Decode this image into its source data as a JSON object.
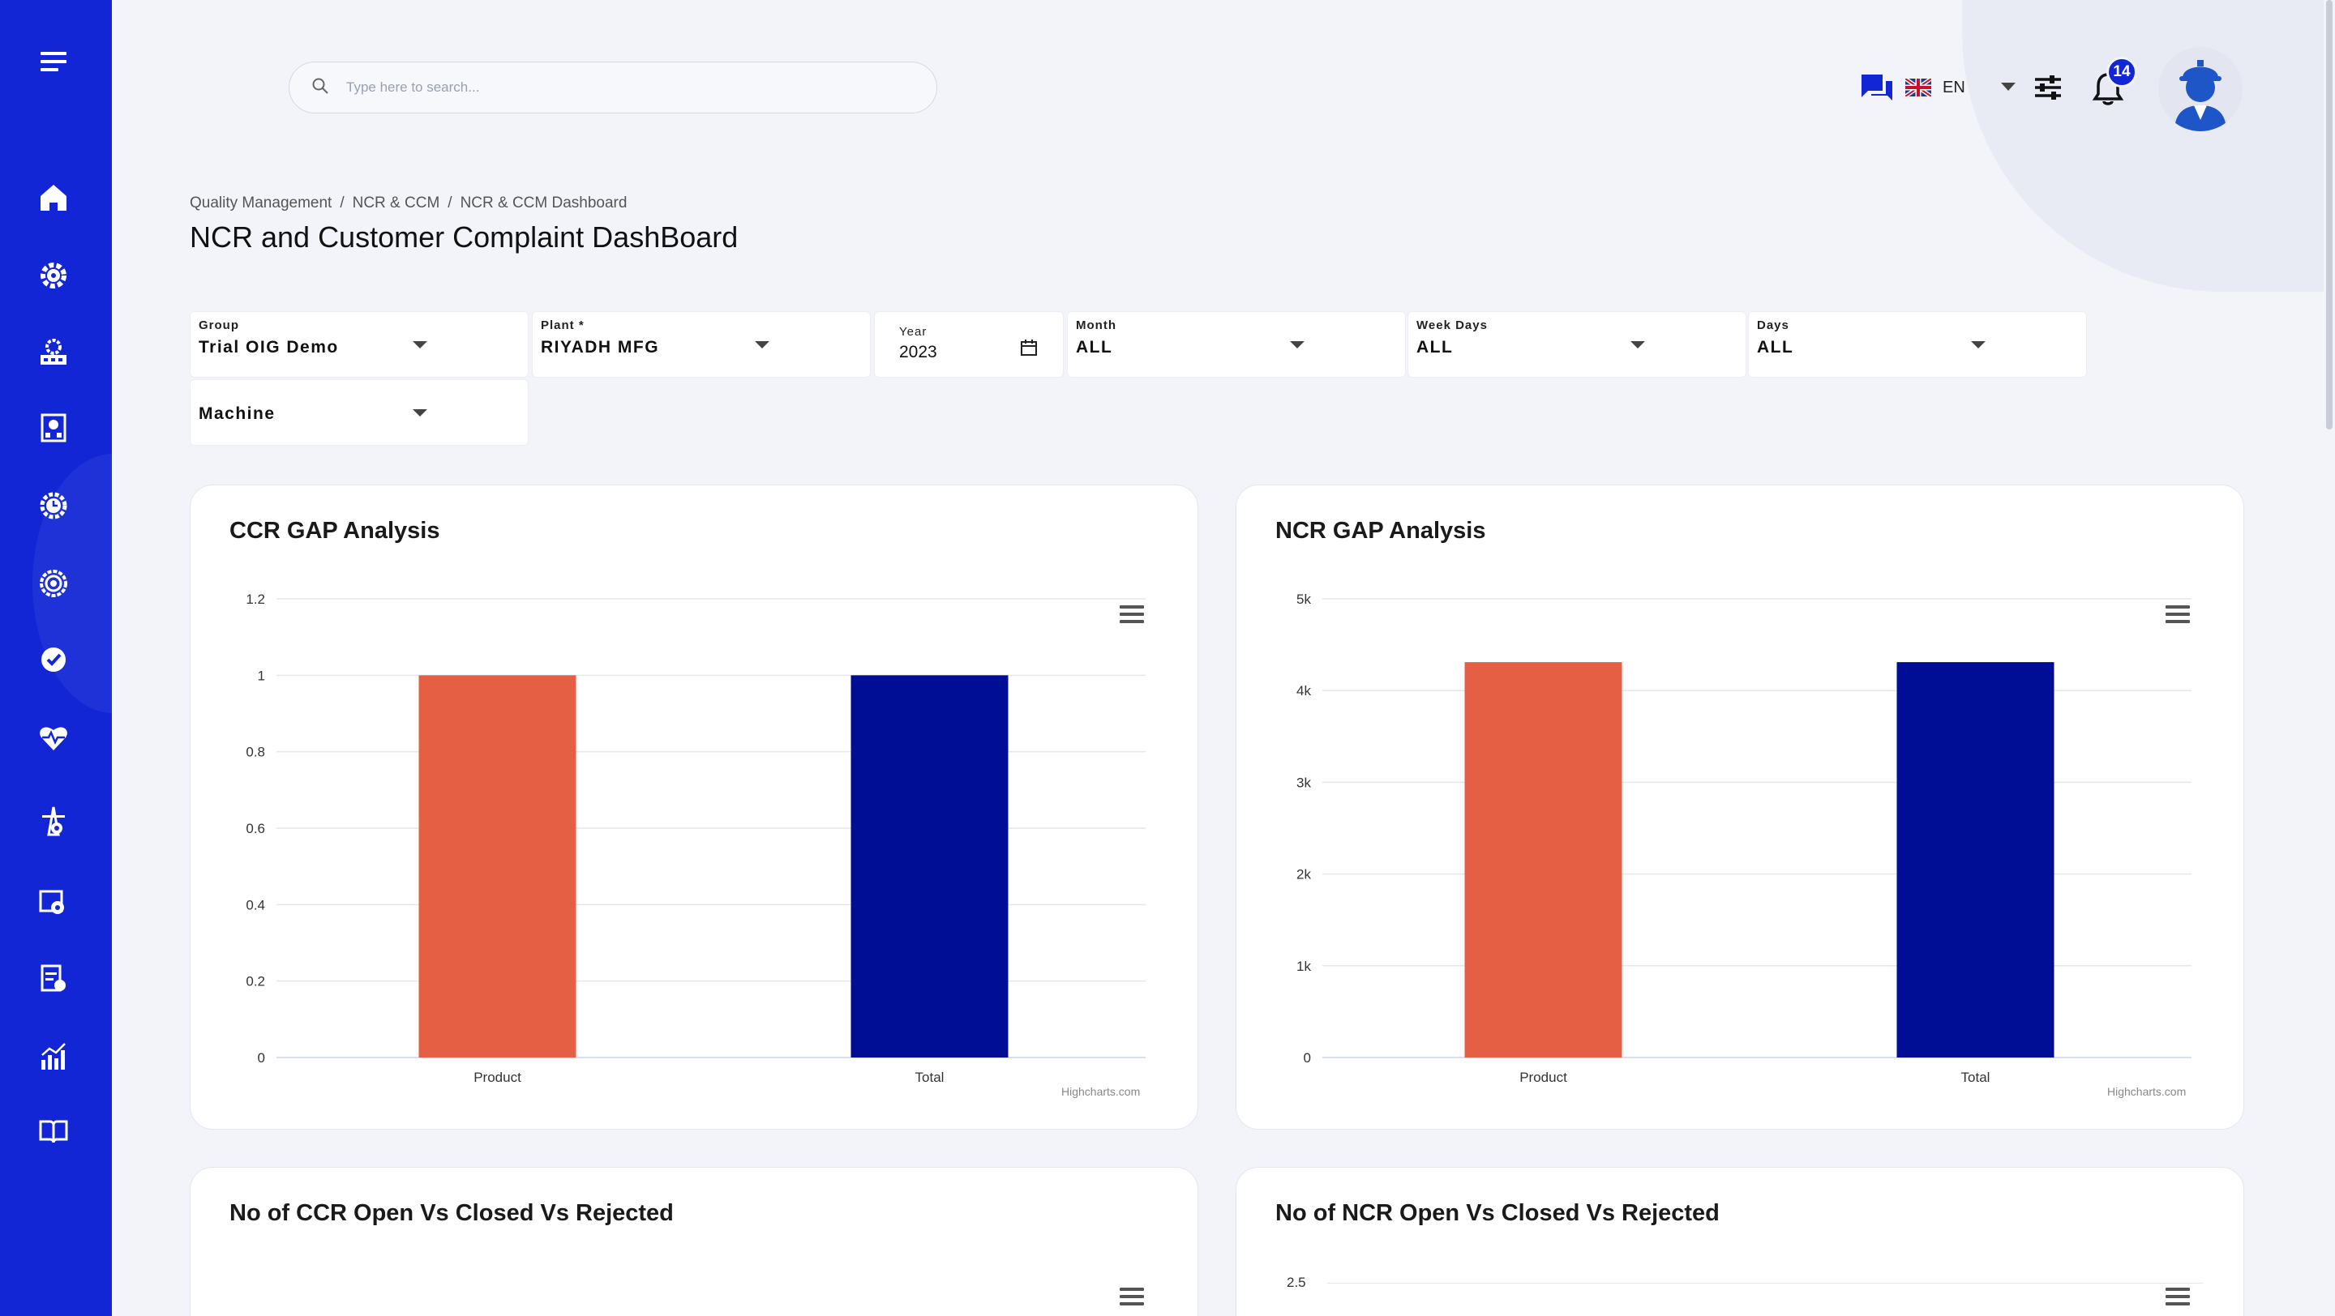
{
  "search": {
    "placeholder": "Type here to search..."
  },
  "header": {
    "language": "EN",
    "notification_count": "14"
  },
  "breadcrumb": [
    "Quality Management",
    "NCR & CCM",
    "NCR & CCM Dashboard"
  ],
  "page_title": "NCR and Customer Complaint DashBoard",
  "filters": {
    "group": {
      "label": "Group",
      "value": "Trial OIG Demo"
    },
    "plant": {
      "label": "Plant *",
      "value": "RIYADH MFG"
    },
    "year": {
      "label": "Year",
      "value": "2023"
    },
    "month": {
      "label": "Month",
      "value": "ALL"
    },
    "week_days": {
      "label": "Week Days",
      "value": "ALL"
    },
    "days": {
      "label": "Days",
      "value": "ALL"
    },
    "machine": {
      "label": "",
      "value": "Machine"
    }
  },
  "sidebar": {
    "items": [
      "menu-icon",
      "home-icon",
      "settings-gear-icon",
      "factory-gear-icon",
      "building-gear-icon",
      "clock-gear-icon",
      "target-icon",
      "check-badge-icon",
      "heartbeat-icon",
      "tower-gear-icon",
      "inspection-icon",
      "report-icon",
      "analytics-icon",
      "book-icon"
    ]
  },
  "colors": {
    "sidebar": "#1226d6",
    "bar_orange": "#e55f45",
    "bar_navy": "#000e96"
  },
  "credit": "Highcharts.com",
  "chart_data": [
    {
      "type": "bar",
      "title": "CCR GAP Analysis",
      "categories": [
        "Product",
        "Total"
      ],
      "values": [
        1,
        1
      ],
      "colors": [
        "#e55f45",
        "#000e96"
      ],
      "ylim": [
        0,
        1.2
      ],
      "yticks": [
        "0",
        "0.2",
        "0.4",
        "0.6",
        "0.8",
        "1",
        "1.2"
      ],
      "grid": true
    },
    {
      "type": "bar",
      "title": "NCR GAP Analysis",
      "categories": [
        "Product",
        "Total"
      ],
      "values": [
        4310,
        4310
      ],
      "colors": [
        "#e55f45",
        "#000e96"
      ],
      "ylim": [
        0,
        5000
      ],
      "yticks": [
        "0",
        "1k",
        "2k",
        "3k",
        "4k",
        "5k"
      ],
      "grid": true
    },
    {
      "type": "bar",
      "title": "No of CCR Open Vs Closed Vs Rejected",
      "categories": [],
      "values": [],
      "yticks": []
    },
    {
      "type": "bar",
      "title": "No of NCR Open Vs Closed Vs Rejected",
      "categories": [],
      "values": [],
      "yticks": [
        "2.5"
      ]
    }
  ]
}
